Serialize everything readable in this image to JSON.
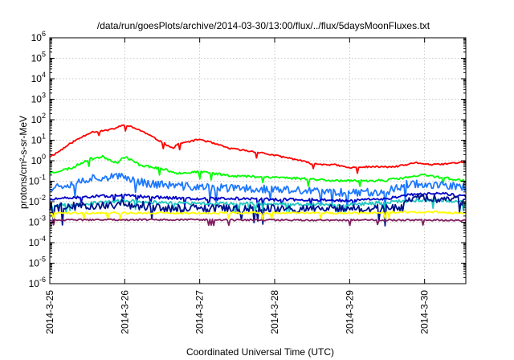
{
  "chart_data": {
    "type": "line",
    "title": "/data/run/goesPlots/archive/2014-03-30/13:00/flux/../flux/5daysMoonFluxes.txt",
    "xlabel": "Coordinated Universal Time (UTC)",
    "ylabel": "protons/cm²-s-sr-MeV",
    "x_ticks": [
      "2014-3-25",
      "2014-3-26",
      "2014-3-27",
      "2014-3-28",
      "2014-3-29",
      "2014-3-30"
    ],
    "xlim": [
      0,
      5.55
    ],
    "ylim_exp": [
      -6,
      6
    ],
    "y_ticks_exp": [
      -6,
      -5,
      -4,
      -3,
      -2,
      -1,
      0,
      1,
      2,
      3,
      4,
      5,
      6
    ],
    "y_scale": "log",
    "grid": true,
    "legend": "none",
    "series": [
      {
        "color": "#ff0000",
        "noise": 0.04,
        "seed": 11,
        "knots": [
          [
            0,
            0.2
          ],
          [
            0.1,
            0.4
          ],
          [
            0.3,
            0.9
          ],
          [
            0.55,
            1.4
          ],
          [
            0.8,
            1.5
          ],
          [
            1.0,
            1.75
          ],
          [
            1.2,
            1.5
          ],
          [
            1.5,
            0.9
          ],
          [
            1.65,
            0.6
          ],
          [
            1.7,
            0.8
          ],
          [
            2.0,
            1.05
          ],
          [
            2.4,
            0.6
          ],
          [
            2.8,
            0.4
          ],
          [
            3.3,
            0.05
          ],
          [
            3.5,
            -0.15
          ],
          [
            3.8,
            -0.2
          ],
          [
            4.0,
            -0.35
          ],
          [
            4.2,
            -0.3
          ],
          [
            4.6,
            -0.3
          ],
          [
            4.9,
            -0.1
          ],
          [
            5.1,
            -0.2
          ],
          [
            5.3,
            -0.15
          ],
          [
            5.55,
            -0.05
          ]
        ]
      },
      {
        "color": "#00ff00",
        "noise": 0.06,
        "seed": 23,
        "knots": [
          [
            0,
            -0.6
          ],
          [
            0.3,
            -0.35
          ],
          [
            0.5,
            0.05
          ],
          [
            0.7,
            0.2
          ],
          [
            0.9,
            -0.1
          ],
          [
            1.0,
            0.2
          ],
          [
            1.2,
            -0.2
          ],
          [
            1.5,
            -0.4
          ],
          [
            1.7,
            -0.6
          ],
          [
            2.0,
            -0.55
          ],
          [
            2.5,
            -0.75
          ],
          [
            3.0,
            -0.8
          ],
          [
            3.5,
            -0.9
          ],
          [
            4.0,
            -1.0
          ],
          [
            4.5,
            -0.95
          ],
          [
            4.8,
            -0.8
          ],
          [
            5.0,
            -0.7
          ],
          [
            5.3,
            -0.85
          ],
          [
            5.55,
            -1.0
          ]
        ]
      },
      {
        "color": "#1e78ff",
        "noise": 0.2,
        "seed": 37,
        "knots": [
          [
            0,
            -1.3
          ],
          [
            0.3,
            -1.1
          ],
          [
            0.6,
            -0.8
          ],
          [
            1.0,
            -0.8
          ],
          [
            1.3,
            -1.1
          ],
          [
            1.6,
            -1.2
          ],
          [
            2.0,
            -1.3
          ],
          [
            2.5,
            -1.35
          ],
          [
            3.0,
            -1.4
          ],
          [
            3.5,
            -1.5
          ],
          [
            4.0,
            -1.55
          ],
          [
            4.5,
            -1.5
          ],
          [
            4.8,
            -1.1
          ],
          [
            5.2,
            -1.2
          ],
          [
            5.55,
            -1.3
          ]
        ]
      },
      {
        "color": "#0000c8",
        "noise": 0.07,
        "seed": 51,
        "knots": [
          [
            0,
            -1.9
          ],
          [
            0.5,
            -1.75
          ],
          [
            1.0,
            -1.7
          ],
          [
            1.5,
            -1.8
          ],
          [
            2.0,
            -1.85
          ],
          [
            2.5,
            -1.85
          ],
          [
            3.0,
            -1.9
          ],
          [
            3.5,
            -1.9
          ],
          [
            4.0,
            -1.95
          ],
          [
            4.5,
            -1.85
          ],
          [
            4.8,
            -1.65
          ],
          [
            5.2,
            -1.6
          ],
          [
            5.55,
            -1.75
          ]
        ]
      },
      {
        "color": "#20c8c0",
        "noise": 0.08,
        "seed": 67,
        "knots": [
          [
            0,
            -2.2
          ],
          [
            0.5,
            -2.1
          ],
          [
            1.0,
            -1.95
          ],
          [
            1.5,
            -2.05
          ],
          [
            2.0,
            -2.1
          ],
          [
            3.0,
            -2.1
          ],
          [
            4.0,
            -2.15
          ],
          [
            4.8,
            -1.95
          ],
          [
            5.2,
            -1.9
          ],
          [
            5.55,
            -2.05
          ]
        ]
      },
      {
        "color": "#00128c",
        "noise": 0.22,
        "seed": 79,
        "knots": [
          [
            0,
            -2.3
          ],
          [
            0.5,
            -2.2
          ],
          [
            1.0,
            -2.1
          ],
          [
            1.5,
            -2.3
          ],
          [
            2.0,
            -2.35
          ],
          [
            3.0,
            -2.35
          ],
          [
            4.0,
            -2.35
          ],
          [
            4.7,
            -2.3
          ],
          [
            4.8,
            -1.8
          ],
          [
            5.2,
            -1.85
          ],
          [
            5.55,
            -2.0
          ]
        ]
      },
      {
        "color": "#ffff00",
        "noise": 0.05,
        "seed": 91,
        "knots": [
          [
            0,
            -2.55
          ],
          [
            1.0,
            -2.55
          ],
          [
            2.0,
            -2.55
          ],
          [
            3.0,
            -2.55
          ],
          [
            4.0,
            -2.55
          ],
          [
            5.0,
            -2.5
          ],
          [
            5.55,
            -2.55
          ]
        ]
      },
      {
        "color": "#802060",
        "noise": 0.04,
        "seed": 103,
        "knots": [
          [
            0,
            -2.9
          ],
          [
            1.0,
            -2.88
          ],
          [
            2.0,
            -2.88
          ],
          [
            3.0,
            -2.9
          ],
          [
            4.0,
            -2.9
          ],
          [
            5.0,
            -2.9
          ],
          [
            5.55,
            -2.92
          ]
        ]
      }
    ]
  }
}
